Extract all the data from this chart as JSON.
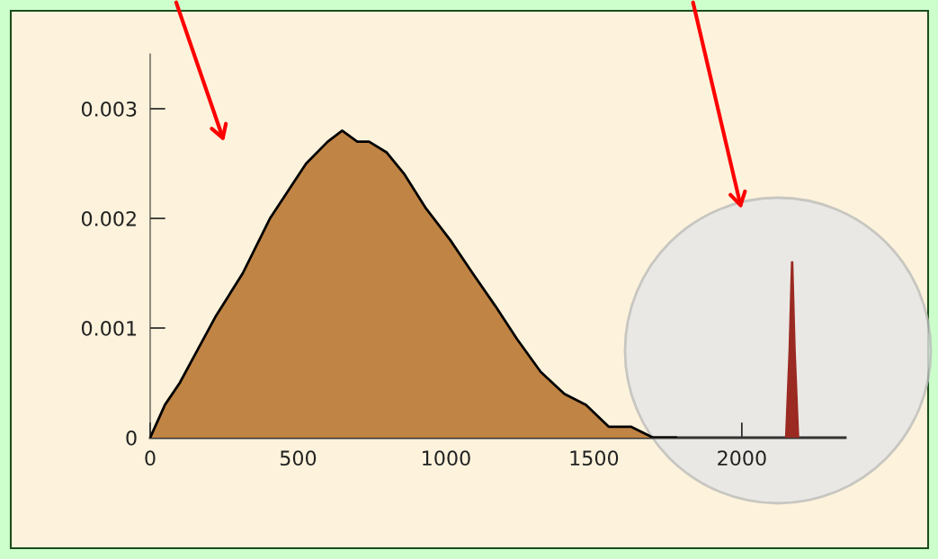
{
  "chart_data": {
    "type": "area",
    "series": [
      {
        "color": "#c08444",
        "x": [
          0,
          50,
          100,
          160,
          220,
          313,
          405,
          527,
          600,
          649,
          700,
          740,
          800,
          860,
          930,
          1015,
          1090,
          1167,
          1240,
          1320,
          1400,
          1473,
          1550,
          1625,
          1700,
          1777
        ],
        "values": [
          0,
          0.0003,
          0.0005,
          0.0008,
          0.0011,
          0.0015,
          0.002,
          0.0025,
          0.0027,
          0.0028,
          0.0027,
          0.0027,
          0.0026,
          0.0024,
          0.0021,
          0.0018,
          0.0015,
          0.0012,
          0.0009,
          0.0006,
          0.0004,
          0.0003,
          0.0001,
          0.0001,
          0,
          0
        ]
      },
      {
        "color": "#9a2a22",
        "x": [
          2150,
          2162,
          2170,
          2178,
          2190
        ],
        "values": [
          0,
          0.0008,
          0.0016,
          0.0008,
          0
        ]
      }
    ],
    "xlim": [
      0,
      2350
    ],
    "ylim": [
      0,
      0.0035
    ],
    "xticks": [
      0,
      500,
      1000,
      1500,
      2000
    ],
    "yticks": [
      0,
      0.001,
      0.002,
      0.003
    ],
    "grid": false
  }
}
